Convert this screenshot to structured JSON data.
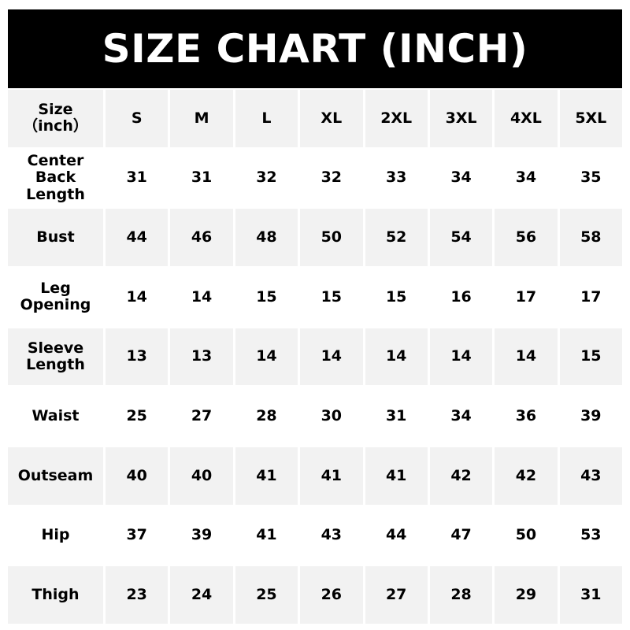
{
  "title": "SIZE CHART (INCH)",
  "header": {
    "label": "Size\n（inch）",
    "sizes": [
      "S",
      "M",
      "L",
      "XL",
      "2XL",
      "3XL",
      "4XL",
      "5XL"
    ]
  },
  "rows": [
    {
      "label": "Center\nBack\nLength",
      "values": [
        "31",
        "31",
        "32",
        "32",
        "33",
        "34",
        "34",
        "35"
      ]
    },
    {
      "label": "Bust",
      "values": [
        "44",
        "46",
        "48",
        "50",
        "52",
        "54",
        "56",
        "58"
      ]
    },
    {
      "label": "Leg\nOpening",
      "values": [
        "14",
        "14",
        "15",
        "15",
        "15",
        "16",
        "17",
        "17"
      ]
    },
    {
      "label": "Sleeve\nLength",
      "values": [
        "13",
        "13",
        "14",
        "14",
        "14",
        "14",
        "14",
        "15"
      ]
    },
    {
      "label": "Waist",
      "values": [
        "25",
        "27",
        "28",
        "30",
        "31",
        "34",
        "36",
        "39"
      ]
    },
    {
      "label": "Outseam",
      "values": [
        "40",
        "40",
        "41",
        "41",
        "41",
        "42",
        "42",
        "43"
      ]
    },
    {
      "label": "Hip",
      "values": [
        "37",
        "39",
        "41",
        "43",
        "44",
        "47",
        "50",
        "53"
      ]
    },
    {
      "label": "Thigh",
      "values": [
        "23",
        "24",
        "25",
        "26",
        "27",
        "28",
        "29",
        "31"
      ]
    }
  ],
  "colors": {
    "banner": "#000000",
    "row_gray": "#f2f2f2",
    "row_white": "#ffffff",
    "text": "#000000"
  }
}
